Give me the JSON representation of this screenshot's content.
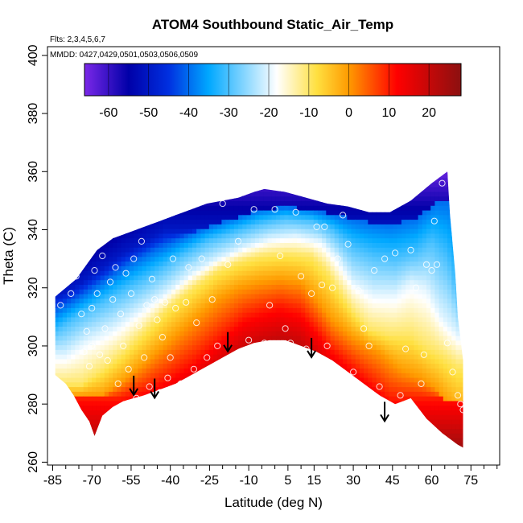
{
  "chart_data": {
    "type": "heatmap",
    "title": "ATOM4 Southbound Static_Air_Temp",
    "annotations": [
      "Flts: 2,3,4,5,6,7",
      "MMDD: 0427,0429,0501,0503,0506,0509"
    ],
    "xlabel": "Latitude (deg N)",
    "ylabel": "Theta (C)",
    "xlim": [
      -87,
      86
    ],
    "ylim": [
      259,
      403
    ],
    "x_ticks": [
      -85,
      -70,
      -55,
      -40,
      -25,
      -10,
      5,
      15,
      30,
      45,
      60,
      75
    ],
    "x_minor_ticks": [
      -80,
      -75,
      -65,
      -60,
      -50,
      -45,
      -35,
      -30,
      -20,
      -15,
      -5,
      0,
      10,
      20,
      25,
      35,
      40,
      50,
      55,
      65,
      70,
      80,
      85
    ],
    "y_ticks": [
      260,
      280,
      300,
      320,
      340,
      360,
      380,
      400
    ],
    "colorbar": {
      "min": -66,
      "max": 28,
      "ticks": [
        -60,
        -50,
        -40,
        -30,
        -20,
        -10,
        0,
        10,
        20
      ],
      "colors": [
        "#7b28e8",
        "#0000a8",
        "#0030e0",
        "#00a8ff",
        "#ffffff",
        "#ffe040",
        "#ff9a00",
        "#ff0000",
        "#8b1010"
      ],
      "stops": [
        -66,
        -55,
        -45,
        -35,
        -18,
        -8,
        0,
        12,
        28
      ]
    },
    "domain_top": [
      [
        -84,
        317
      ],
      [
        -80,
        320
      ],
      [
        -76,
        323
      ],
      [
        -72,
        328
      ],
      [
        -68,
        333
      ],
      [
        -62,
        337
      ],
      [
        -56,
        339
      ],
      [
        -50,
        341
      ],
      [
        -44,
        343
      ],
      [
        -38,
        345
      ],
      [
        -32,
        347
      ],
      [
        -26,
        349
      ],
      [
        -20,
        350
      ],
      [
        -14,
        351
      ],
      [
        -8,
        353
      ],
      [
        -4,
        354
      ],
      [
        4,
        353
      ],
      [
        12,
        351
      ],
      [
        20,
        349
      ],
      [
        28,
        348
      ],
      [
        36,
        346
      ],
      [
        44,
        346
      ],
      [
        52,
        350
      ],
      [
        60,
        356
      ],
      [
        66,
        360
      ]
    ],
    "domain_right": [
      [
        66,
        360
      ],
      [
        67,
        345
      ],
      [
        69,
        325
      ],
      [
        70,
        310
      ],
      [
        72,
        295
      ],
      [
        72,
        280
      ],
      [
        72,
        265
      ]
    ],
    "domain_bottom": [
      [
        -84,
        290
      ],
      [
        -80,
        287
      ],
      [
        -77,
        283
      ],
      [
        -74,
        278
      ],
      [
        -71,
        274
      ],
      [
        -69,
        269
      ],
      [
        -66,
        276
      ],
      [
        -62,
        279
      ],
      [
        -58,
        281
      ],
      [
        -54,
        282
      ],
      [
        -50,
        283
      ],
      [
        -44,
        285
      ],
      [
        -38,
        287
      ],
      [
        -32,
        290
      ],
      [
        -26,
        293
      ],
      [
        -20,
        296
      ],
      [
        -14,
        299
      ],
      [
        -8,
        301
      ],
      [
        -2,
        302
      ],
      [
        4,
        302
      ],
      [
        10,
        300
      ],
      [
        16,
        298
      ],
      [
        22,
        295
      ],
      [
        28,
        291
      ],
      [
        34,
        287
      ],
      [
        40,
        283
      ],
      [
        46,
        280
      ],
      [
        52,
        282
      ],
      [
        58,
        275
      ],
      [
        64,
        270
      ],
      [
        70,
        266
      ],
      [
        72,
        265
      ]
    ],
    "isotherms": [
      {
        "value": 10,
        "points": [
          [
            -60,
            282
          ],
          [
            -50,
            285
          ],
          [
            -40,
            290
          ],
          [
            -30,
            296
          ],
          [
            -20,
            304
          ],
          [
            -12,
            310
          ],
          [
            -6,
            312
          ],
          [
            2,
            314
          ],
          [
            10,
            312
          ],
          [
            16,
            306
          ],
          [
            22,
            299
          ],
          [
            30,
            293
          ],
          [
            38,
            287
          ],
          [
            44,
            282
          ]
        ]
      },
      {
        "value": 0,
        "points": [
          [
            -66,
            283
          ],
          [
            -58,
            288
          ],
          [
            -50,
            294
          ],
          [
            -40,
            302
          ],
          [
            -30,
            310
          ],
          [
            -22,
            316
          ],
          [
            -14,
            320
          ],
          [
            -6,
            322
          ],
          [
            2,
            323
          ],
          [
            10,
            322
          ],
          [
            16,
            316
          ],
          [
            22,
            309
          ],
          [
            30,
            303
          ],
          [
            40,
            298
          ],
          [
            48,
            292
          ],
          [
            56,
            289
          ],
          [
            62,
            285
          ],
          [
            66,
            280
          ],
          [
            70,
            276
          ]
        ]
      },
      {
        "value": -10,
        "points": [
          [
            -74,
            287
          ],
          [
            -66,
            292
          ],
          [
            -58,
            298
          ],
          [
            -50,
            305
          ],
          [
            -40,
            314
          ],
          [
            -30,
            321
          ],
          [
            -22,
            326
          ],
          [
            -14,
            329
          ],
          [
            -6,
            331
          ],
          [
            4,
            332
          ],
          [
            14,
            331
          ],
          [
            20,
            326
          ],
          [
            24,
            320
          ],
          [
            30,
            312
          ],
          [
            36,
            306
          ],
          [
            44,
            304
          ],
          [
            52,
            304
          ],
          [
            58,
            300
          ],
          [
            64,
            297
          ],
          [
            70,
            293
          ]
        ]
      },
      {
        "value": -20,
        "points": [
          [
            -80,
            297
          ],
          [
            -72,
            302
          ],
          [
            -62,
            306
          ],
          [
            -52,
            312
          ],
          [
            -42,
            318
          ],
          [
            -32,
            325
          ],
          [
            -22,
            330
          ],
          [
            -12,
            334
          ],
          [
            -2,
            337
          ],
          [
            8,
            338
          ],
          [
            18,
            336
          ],
          [
            24,
            330
          ],
          [
            30,
            322
          ],
          [
            38,
            318
          ],
          [
            46,
            318
          ],
          [
            52,
            322
          ],
          [
            58,
            320
          ],
          [
            64,
            310
          ],
          [
            70,
            304
          ]
        ]
      },
      {
        "value": -30,
        "points": [
          [
            -84,
            305
          ],
          [
            -76,
            310
          ],
          [
            -66,
            315
          ],
          [
            -56,
            320
          ],
          [
            -46,
            325
          ],
          [
            -36,
            331
          ],
          [
            -26,
            336
          ],
          [
            -16,
            339
          ],
          [
            -6,
            342
          ],
          [
            4,
            344
          ],
          [
            14,
            343
          ],
          [
            22,
            340
          ],
          [
            30,
            334
          ],
          [
            38,
            331
          ],
          [
            46,
            330
          ],
          [
            54,
            332
          ],
          [
            60,
            336
          ],
          [
            66,
            330
          ],
          [
            70,
            318
          ]
        ]
      },
      {
        "value": -40,
        "points": [
          [
            -84,
            312
          ],
          [
            -76,
            316
          ],
          [
            -66,
            322
          ],
          [
            -56,
            328
          ],
          [
            -46,
            333
          ],
          [
            -36,
            337
          ],
          [
            -26,
            341
          ],
          [
            -16,
            344
          ],
          [
            -6,
            347
          ],
          [
            4,
            348
          ],
          [
            14,
            347
          ],
          [
            24,
            345
          ],
          [
            34,
            343
          ],
          [
            44,
            342
          ],
          [
            54,
            344
          ],
          [
            62,
            350
          ]
        ]
      },
      {
        "value": -50,
        "points": [
          [
            -82,
            318
          ],
          [
            -74,
            322
          ],
          [
            -66,
            327
          ],
          [
            -58,
            332
          ],
          [
            -50,
            336
          ],
          [
            -42,
            340
          ]
        ]
      }
    ],
    "measurement_points": [
      [
        -82,
        314
      ],
      [
        -78,
        318
      ],
      [
        -76,
        324
      ],
      [
        -74,
        311
      ],
      [
        -73,
        298
      ],
      [
        -72,
        305
      ],
      [
        -71,
        293
      ],
      [
        -70,
        300
      ],
      [
        -70,
        313
      ],
      [
        -69,
        326
      ],
      [
        -68,
        318
      ],
      [
        -67,
        297
      ],
      [
        -66,
        331
      ],
      [
        -65,
        306
      ],
      [
        -64,
        295
      ],
      [
        -63,
        322
      ],
      [
        -62,
        316
      ],
      [
        -61,
        327
      ],
      [
        -60,
        287
      ],
      [
        -59,
        311
      ],
      [
        -58,
        300
      ],
      [
        -57,
        325
      ],
      [
        -56,
        292
      ],
      [
        -55,
        318
      ],
      [
        -54,
        330
      ],
      [
        -53,
        282
      ],
      [
        -52,
        307
      ],
      [
        -51,
        336
      ],
      [
        -50,
        296
      ],
      [
        -49,
        314
      ],
      [
        -48,
        286
      ],
      [
        -47,
        323
      ],
      [
        -46,
        316
      ],
      [
        -45,
        309
      ],
      [
        -44,
        284
      ],
      [
        -43,
        303
      ],
      [
        -42,
        315
      ],
      [
        -41,
        289
      ],
      [
        -40,
        296
      ],
      [
        -39,
        330
      ],
      [
        -38,
        313
      ],
      [
        -36,
        287
      ],
      [
        -34,
        315
      ],
      [
        -33,
        327
      ],
      [
        -31,
        292
      ],
      [
        -30,
        308
      ],
      [
        -28,
        330
      ],
      [
        -26,
        296
      ],
      [
        -24,
        316
      ],
      [
        -22,
        300
      ],
      [
        -20,
        349
      ],
      [
        -18,
        328
      ],
      [
        -14,
        336
      ],
      [
        -10,
        302
      ],
      [
        -8,
        347
      ],
      [
        -4,
        301
      ],
      [
        -2,
        314
      ],
      [
        0,
        347
      ],
      [
        2,
        331
      ],
      [
        4,
        306
      ],
      [
        6,
        301
      ],
      [
        8,
        346
      ],
      [
        10,
        324
      ],
      [
        12,
        299
      ],
      [
        14,
        318
      ],
      [
        16,
        341
      ],
      [
        17,
        296
      ],
      [
        18,
        321
      ],
      [
        19,
        341
      ],
      [
        20,
        300
      ],
      [
        22,
        320
      ],
      [
        24,
        330
      ],
      [
        26,
        345
      ],
      [
        28,
        335
      ],
      [
        30,
        291
      ],
      [
        32,
        319
      ],
      [
        34,
        306
      ],
      [
        36,
        300
      ],
      [
        38,
        326
      ],
      [
        40,
        286
      ],
      [
        42,
        330
      ],
      [
        44,
        279
      ],
      [
        46,
        332
      ],
      [
        48,
        283
      ],
      [
        50,
        299
      ],
      [
        52,
        333
      ],
      [
        54,
        320
      ],
      [
        56,
        287
      ],
      [
        57,
        297
      ],
      [
        58,
        328
      ],
      [
        60,
        326
      ],
      [
        61,
        343
      ],
      [
        62,
        328
      ],
      [
        64,
        356
      ],
      [
        66,
        301
      ],
      [
        68,
        291
      ],
      [
        70,
        283
      ],
      [
        71,
        280
      ],
      [
        72,
        278
      ]
    ],
    "arrows": [
      [
        -54,
        287
      ],
      [
        -46,
        286
      ],
      [
        -18,
        302
      ],
      [
        14,
        300
      ],
      [
        42,
        278
      ]
    ]
  }
}
